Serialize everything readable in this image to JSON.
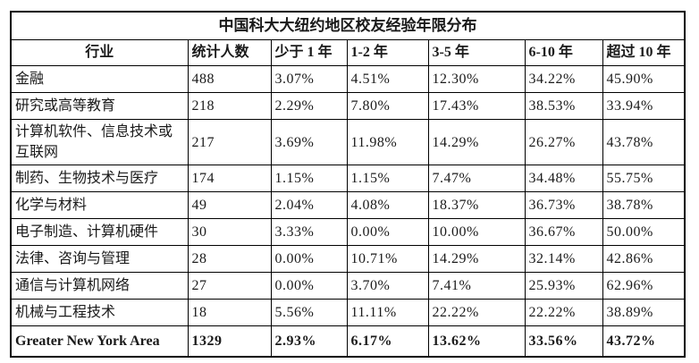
{
  "table": {
    "title": "中国科大大纽约地区校友经验年限分布",
    "columns": [
      "行业",
      "统计人数",
      "少于 1 年",
      "1-2 年",
      "3-5 年",
      "6-10 年",
      "超过 10 年"
    ],
    "rows": [
      {
        "industry": "金融",
        "count": "488",
        "percents": [
          "3.07%",
          "4.51%",
          "12.30%",
          "34.22%",
          "45.90%"
        ],
        "is_total": false
      },
      {
        "industry": "研究或高等教育",
        "count": "218",
        "percents": [
          "2.29%",
          "7.80%",
          "17.43%",
          "38.53%",
          "33.94%"
        ],
        "is_total": false
      },
      {
        "industry": "计算机软件、信息技术或互联网",
        "count": "217",
        "percents": [
          "3.69%",
          "11.98%",
          "14.29%",
          "26.27%",
          "43.78%"
        ],
        "is_total": false
      },
      {
        "industry": "制药、生物技术与医疗",
        "count": "174",
        "percents": [
          "1.15%",
          "1.15%",
          "7.47%",
          "34.48%",
          "55.75%"
        ],
        "is_total": false
      },
      {
        "industry": "化学与材料",
        "count": "49",
        "percents": [
          "2.04%",
          "4.08%",
          "18.37%",
          "36.73%",
          "38.78%"
        ],
        "is_total": false
      },
      {
        "industry": "电子制造、计算机硬件",
        "count": "30",
        "percents": [
          "3.33%",
          "0.00%",
          "10.00%",
          "36.67%",
          "50.00%"
        ],
        "is_total": false
      },
      {
        "industry": "法律、咨询与管理",
        "count": "28",
        "percents": [
          "0.00%",
          "10.71%",
          "14.29%",
          "32.14%",
          "42.86%"
        ],
        "is_total": false
      },
      {
        "industry": "通信与计算机网络",
        "count": "27",
        "percents": [
          "0.00%",
          "3.70%",
          "7.41%",
          "25.93%",
          "62.96%"
        ],
        "is_total": false
      },
      {
        "industry": "机械与工程技术",
        "count": "18",
        "percents": [
          "5.56%",
          "11.11%",
          "22.22%",
          "22.22%",
          "38.89%"
        ],
        "is_total": false
      },
      {
        "industry": "Greater New York Area",
        "count": "1329",
        "percents": [
          "2.93%",
          "6.17%",
          "13.62%",
          "33.56%",
          "43.72%"
        ],
        "is_total": true
      }
    ],
    "colors": {
      "text": "#1a1a1a",
      "border": "#000000",
      "background": "#ffffff"
    }
  },
  "chart_data": {
    "type": "table",
    "title": "中国科大大纽约地区校友经验年限分布",
    "columns": [
      "行业",
      "统计人数",
      "少于 1 年",
      "1-2 年",
      "3-5 年",
      "6-10 年",
      "超过 10 年"
    ],
    "rows": [
      [
        "金融",
        488,
        "3.07%",
        "4.51%",
        "12.30%",
        "34.22%",
        "45.90%"
      ],
      [
        "研究或高等教育",
        218,
        "2.29%",
        "7.80%",
        "17.43%",
        "38.53%",
        "33.94%"
      ],
      [
        "计算机软件、信息技术或互联网",
        217,
        "3.69%",
        "11.98%",
        "14.29%",
        "26.27%",
        "43.78%"
      ],
      [
        "制药、生物技术与医疗",
        174,
        "1.15%",
        "1.15%",
        "7.47%",
        "34.48%",
        "55.75%"
      ],
      [
        "化学与材料",
        49,
        "2.04%",
        "4.08%",
        "18.37%",
        "36.73%",
        "38.78%"
      ],
      [
        "电子制造、计算机硬件",
        30,
        "3.33%",
        "0.00%",
        "10.00%",
        "36.67%",
        "50.00%"
      ],
      [
        "法律、咨询与管理",
        28,
        "0.00%",
        "10.71%",
        "14.29%",
        "32.14%",
        "42.86%"
      ],
      [
        "通信与计算机网络",
        27,
        "0.00%",
        "3.70%",
        "7.41%",
        "25.93%",
        "62.96%"
      ],
      [
        "机械与工程技术",
        18,
        "5.56%",
        "11.11%",
        "22.22%",
        "22.22%",
        "38.89%"
      ],
      [
        "Greater New York Area",
        1329,
        "2.93%",
        "6.17%",
        "13.62%",
        "33.56%",
        "43.72%"
      ]
    ],
    "notes": "Last row is the bold total/summary row for Greater New York Area."
  }
}
